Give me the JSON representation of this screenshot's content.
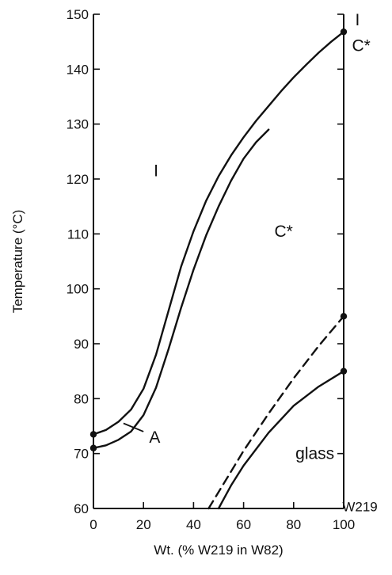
{
  "chart_data": {
    "type": "line",
    "title": "",
    "xlabel": "Wt. (% W219 in W82)",
    "ylabel": "Temperature (°C)",
    "xlim": [
      0,
      100
    ],
    "ylim": [
      60,
      150
    ],
    "x_ticks": [
      "0",
      "20",
      "40",
      "60",
      "80",
      "100"
    ],
    "y_ticks": [
      "60",
      "70",
      "80",
      "90",
      "100",
      "110",
      "120",
      "130",
      "140",
      "150"
    ],
    "grid": false,
    "series": [
      {
        "style": "solid",
        "x": [
          0,
          5,
          10,
          15,
          20,
          25,
          30,
          35,
          40,
          45,
          50,
          55,
          60,
          65,
          70,
          75,
          80,
          85,
          90,
          95,
          100
        ],
        "y": [
          73.5,
          74.3,
          75.8,
          78.0,
          81.8,
          88.0,
          96.0,
          104.0,
          110.5,
          116.0,
          120.5,
          124.3,
          127.6,
          130.6,
          133.3,
          136.0,
          138.5,
          140.8,
          143.0,
          145.0,
          146.8
        ]
      },
      {
        "style": "solid",
        "x": [
          0,
          5,
          10,
          15,
          20,
          25,
          30,
          35,
          40,
          45,
          50,
          55,
          60,
          65,
          70
        ],
        "y": [
          71.0,
          71.5,
          72.5,
          74.0,
          77.0,
          82.0,
          89.0,
          96.5,
          103.5,
          109.7,
          115.0,
          119.7,
          123.7,
          126.7,
          129.0
        ]
      },
      {
        "style": "dashed",
        "x": [
          46,
          60,
          70,
          80,
          90,
          100
        ],
        "y": [
          60,
          70.5,
          77.3,
          83.7,
          89.6,
          95
        ]
      },
      {
        "style": "solid",
        "x": [
          50,
          55,
          60,
          70,
          80,
          90,
          100
        ],
        "y": [
          60,
          64.2,
          67.8,
          73.8,
          78.7,
          82.2,
          85
        ]
      }
    ],
    "points": [
      {
        "x": 0,
        "y": 73.5
      },
      {
        "x": 0,
        "y": 71.0
      },
      {
        "x": 100,
        "y": 146.8
      },
      {
        "x": 100,
        "y": 95
      },
      {
        "x": 100,
        "y": 85
      }
    ],
    "annotations": [
      {
        "text": "I",
        "x": 25,
        "y": 121.5
      },
      {
        "text": "C*",
        "x": 76,
        "y": 110.5
      },
      {
        "text": "glass",
        "x": 88.5,
        "y": 70
      },
      {
        "text": "A",
        "x": 24.5,
        "y": 73
      },
      {
        "text": "I",
        "x": 105.5,
        "y": 149
      },
      {
        "text": "C*",
        "x": 107,
        "y": 144.3
      },
      {
        "text": "W219",
        "x": 106.5,
        "y": 60.5
      }
    ],
    "leader": {
      "x": [
        12,
        20
      ],
      "y": [
        75.5,
        74
      ]
    }
  }
}
